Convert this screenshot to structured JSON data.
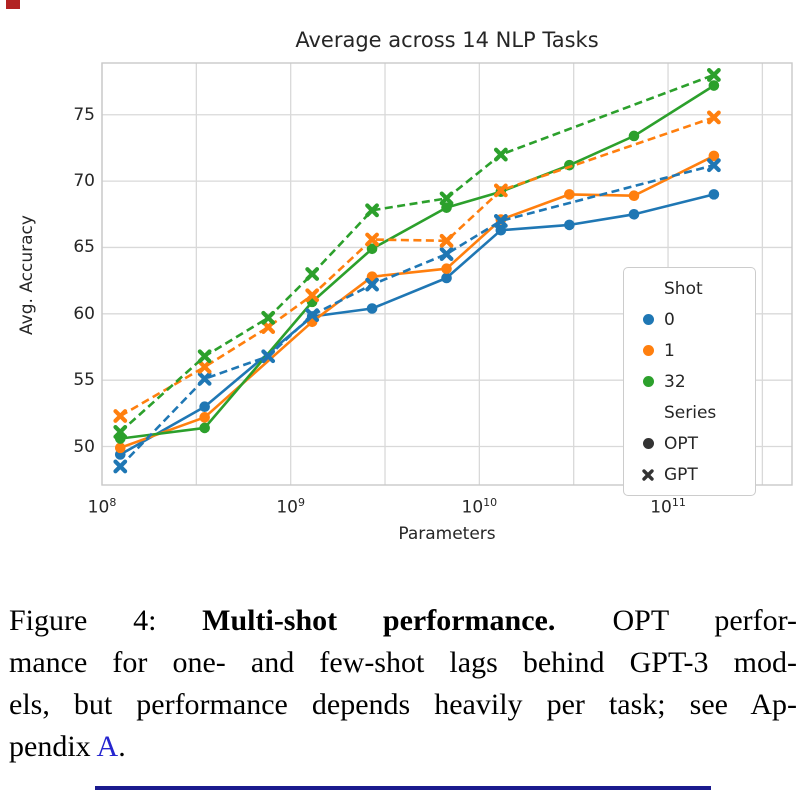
{
  "chart_data": {
    "type": "line",
    "title": "Average across 14 NLP Tasks",
    "xlabel": "Parameters",
    "ylabel": "Avg. Accuracy",
    "grid": "on",
    "x_axis": {
      "scale": "log",
      "tick_exponents": [
        8,
        9,
        10,
        11
      ],
      "tick_labels": [
        "10^8",
        "10^9",
        "10^10",
        "10^11"
      ],
      "gridline_exponents": [
        8,
        8.5,
        9,
        9.5,
        10,
        10.5,
        11,
        11.5
      ],
      "range_exponents": [
        8,
        11.657
      ]
    },
    "y_axis": {
      "ticks": [
        50,
        55,
        60,
        65,
        70,
        75
      ],
      "range": [
        47.1,
        78.9
      ]
    },
    "colors": {
      "shot_0": "#1f77b4",
      "shot_1": "#ff7f0e",
      "shot_32": "#2ca02c",
      "legend_marker": "#333333",
      "grid": "#d9d9d9",
      "frame": "#c9c9c9",
      "text": "#262626"
    },
    "series": [
      {
        "id": "opt-0shot",
        "family": "OPT",
        "shot": "0",
        "line_style": "solid",
        "marker": "circle",
        "color": "#1f77b4",
        "params_billions": [
          0.125,
          0.35,
          1.3,
          2.7,
          6.7,
          13,
          30,
          66,
          175
        ],
        "values": [
          49.4,
          53.0,
          59.8,
          60.4,
          62.7,
          66.3,
          66.7,
          67.5,
          69.0
        ]
      },
      {
        "id": "opt-1shot",
        "family": "OPT",
        "shot": "1",
        "line_style": "solid",
        "marker": "circle",
        "color": "#ff7f0e",
        "params_billions": [
          0.125,
          0.35,
          1.3,
          2.7,
          6.7,
          13,
          30,
          66,
          175
        ],
        "values": [
          49.9,
          52.2,
          59.4,
          62.8,
          63.4,
          67.1,
          69.0,
          68.9,
          71.9
        ]
      },
      {
        "id": "opt-32shot",
        "family": "OPT",
        "shot": "32",
        "line_style": "solid",
        "marker": "circle",
        "color": "#2ca02c",
        "params_billions": [
          0.125,
          0.35,
          1.3,
          2.7,
          6.7,
          13,
          30,
          66,
          175
        ],
        "values": [
          50.6,
          51.4,
          60.9,
          64.9,
          68.0,
          69.2,
          71.2,
          73.4,
          77.2
        ]
      },
      {
        "id": "gpt-0shot",
        "family": "GPT",
        "shot": "0",
        "line_style": "dashed",
        "marker": "x",
        "color": "#1f77b4",
        "params_billions": [
          0.125,
          0.35,
          0.76,
          1.3,
          2.7,
          6.7,
          13,
          175
        ],
        "values": [
          48.5,
          55.1,
          56.8,
          59.9,
          62.2,
          64.5,
          67.0,
          71.2
        ]
      },
      {
        "id": "gpt-1shot",
        "family": "GPT",
        "shot": "1",
        "line_style": "dashed",
        "marker": "x",
        "color": "#ff7f0e",
        "params_billions": [
          0.125,
          0.35,
          0.76,
          1.3,
          2.7,
          6.7,
          13,
          175
        ],
        "values": [
          52.3,
          56.0,
          59.0,
          61.4,
          65.6,
          65.5,
          69.3,
          74.8
        ]
      },
      {
        "id": "gpt-32shot",
        "family": "GPT",
        "shot": "32",
        "line_style": "dashed",
        "marker": "x",
        "color": "#2ca02c",
        "params_billions": [
          0.125,
          0.35,
          0.76,
          1.3,
          2.7,
          6.7,
          13,
          175
        ],
        "values": [
          51.1,
          56.8,
          59.7,
          63.0,
          67.8,
          68.7,
          72.0,
          78.0
        ]
      }
    ],
    "legend": {
      "position": "inside lower-right",
      "sections": [
        {
          "header": "Shot",
          "items": [
            {
              "label": "0",
              "marker": "circle",
              "color": "#1f77b4"
            },
            {
              "label": "1",
              "marker": "circle",
              "color": "#ff7f0e"
            },
            {
              "label": "32",
              "marker": "circle",
              "color": "#2ca02c"
            }
          ]
        },
        {
          "header": "Series",
          "items": [
            {
              "label": "OPT",
              "marker": "circle",
              "color": "#333333"
            },
            {
              "label": "GPT",
              "marker": "x",
              "color": "#333333"
            }
          ]
        }
      ]
    }
  },
  "caption": {
    "full_text": "Figure 4: Multi-shot performance. OPT performance for one- and few-shot lags behind GPT-3 models, but performance depends heavily per task; see Appendix A.",
    "link_color": "#2525cf",
    "lines": [
      {
        "segments": [
          {
            "text": "Figure 4:"
          },
          {
            "text": "Multi-shot performance.",
            "bold": true
          },
          {
            "text": "OPT perfor-",
            "sentence_gap": true
          }
        ]
      },
      {
        "segments": [
          {
            "text": "mance for one- and few-shot lags behind GPT-3 mod-"
          }
        ]
      },
      {
        "segments": [
          {
            "text": "els, but performance depends heavily per task; see Ap-"
          }
        ]
      },
      {
        "segments": [
          {
            "text": "pendix"
          },
          {
            "text": "A",
            "link": true
          },
          {
            "text": ".",
            "no_space_before": true
          }
        ],
        "last": true
      }
    ]
  },
  "artifacts": {
    "bottom_rule_color": "#1a1a8e",
    "corner_mark_color": "#b22222"
  }
}
